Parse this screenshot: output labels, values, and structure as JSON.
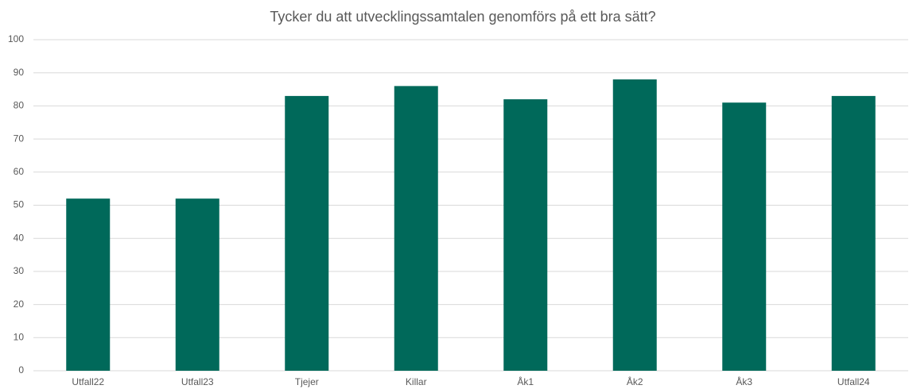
{
  "chart_data": {
    "type": "bar",
    "title": "Tycker du att utvecklingssamtalen genomförs på ett bra sätt?",
    "categories": [
      "Utfall22",
      "Utfall23",
      "Tjejer",
      "Killar",
      "Åk1",
      "Åk2",
      "Åk3",
      "Utfall24"
    ],
    "values": [
      52,
      52,
      83,
      86,
      82,
      88,
      81,
      83
    ],
    "color": "#00695a",
    "ylim": [
      0,
      100
    ],
    "yticks": [
      0,
      10,
      20,
      30,
      40,
      50,
      60,
      70,
      80,
      90,
      100
    ],
    "grid": true
  }
}
